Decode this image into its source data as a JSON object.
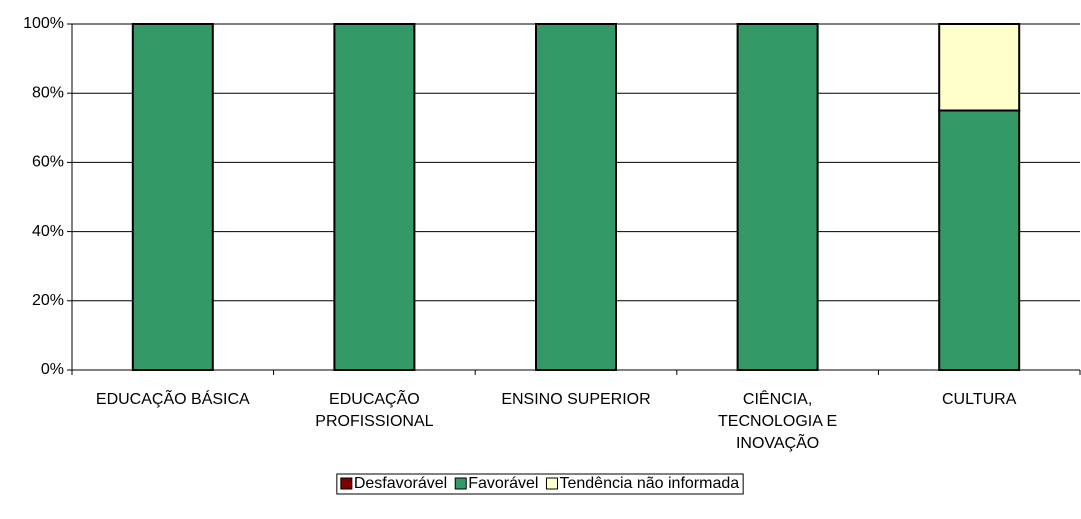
{
  "chart_data": {
    "type": "stacked_bar",
    "categories": [
      "EDUCAÇÃO BÁSICA",
      "EDUCAÇÃO\nPROFISSIONAL",
      "ENSINO SUPERIOR",
      "CIÊNCIA,\nTECNOLOGIA E\nINOVAÇÃO",
      "CULTURA"
    ],
    "series": [
      {
        "name": "Desfavorável",
        "color": "#800000",
        "values": [
          0,
          0,
          0,
          0,
          0
        ]
      },
      {
        "name": "Favorável",
        "color": "#339966",
        "values": [
          100,
          100,
          100,
          100,
          75
        ]
      },
      {
        "name": "Tendência não informada",
        "color": "#FFFFCC",
        "values": [
          0,
          0,
          0,
          0,
          25
        ]
      }
    ],
    "ylim": [
      0,
      100
    ],
    "yticks": [
      {
        "value": 0,
        "label": "0%"
      },
      {
        "value": 20,
        "label": "20%"
      },
      {
        "value": 40,
        "label": "40%"
      },
      {
        "value": 60,
        "label": "60%"
      },
      {
        "value": 80,
        "label": "80%"
      },
      {
        "value": 100,
        "label": "100%"
      }
    ],
    "grid": true,
    "legend": "bottom"
  }
}
